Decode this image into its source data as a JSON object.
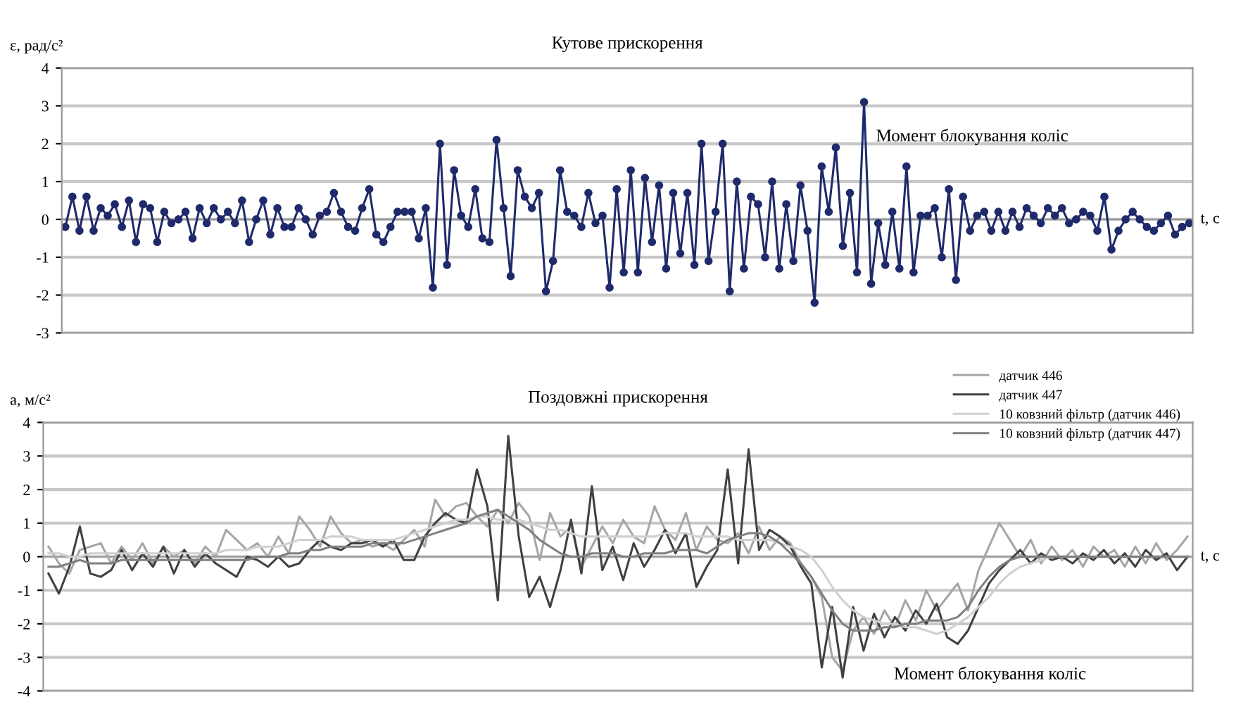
{
  "chart_data": [
    {
      "type": "line",
      "title": "Кутове прискорення",
      "ylabel": "ε, рад/с²",
      "xlabel": "t, с",
      "ylim": [
        -3,
        4
      ],
      "yticks": [
        -3,
        -2,
        -1,
        0,
        1,
        2,
        3,
        4
      ],
      "grid": "y",
      "marker": "circle",
      "legend": false,
      "categories": [
        null,
        null,
        null,
        null,
        null,
        null,
        null,
        null,
        null,
        null,
        null,
        null,
        null,
        null,
        null,
        null,
        null,
        null,
        null,
        null,
        null,
        null,
        null,
        null,
        null,
        null,
        null,
        null,
        null,
        null,
        null,
        null,
        null,
        null,
        null,
        null,
        null,
        null,
        null,
        null,
        null,
        null,
        null,
        null,
        null,
        null,
        null,
        null,
        null,
        null,
        null,
        null,
        null,
        null,
        null,
        null,
        null,
        null,
        null,
        null,
        null,
        null,
        null,
        null,
        null,
        null,
        null,
        null,
        null,
        null,
        null,
        null,
        null,
        null,
        null,
        null,
        null,
        null,
        null,
        null,
        null,
        null,
        null,
        null,
        null,
        null,
        null,
        null,
        null,
        null,
        null,
        null,
        null,
        null,
        null,
        null,
        null,
        null,
        null,
        null,
        null,
        null,
        null,
        null,
        null,
        null,
        null,
        null,
        null,
        null,
        null,
        null,
        null,
        null,
        null,
        null,
        null,
        null,
        null,
        null,
        null,
        null,
        null,
        null,
        null,
        null,
        null,
        null,
        null,
        null,
        null,
        null,
        null,
        null,
        null,
        null,
        null,
        null,
        null,
        null,
        null,
        null,
        null,
        null,
        null,
        null,
        null,
        null,
        null,
        null,
        null,
        null,
        null,
        null,
        null,
        null,
        null,
        null,
        null,
        null
      ],
      "series": [
        {
          "color": "#1f2a6b",
          "values": [
            -0.2,
            0.6,
            -0.3,
            0.6,
            -0.3,
            0.3,
            0.1,
            0.4,
            -0.2,
            0.5,
            -0.6,
            0.4,
            0.3,
            -0.6,
            0.2,
            -0.1,
            0,
            0.2,
            -0.5,
            0.3,
            -0.1,
            0.3,
            0,
            0.2,
            -0.1,
            0.5,
            -0.6,
            0,
            0.5,
            -0.4,
            0.3,
            -0.2,
            -0.2,
            0.3,
            0,
            -0.4,
            0.1,
            0.2,
            0.7,
            0.2,
            -0.2,
            -0.3,
            0.3,
            0.8,
            -0.4,
            -0.6,
            -0.2,
            0.2,
            0.2,
            0.2,
            -0.5,
            0.3,
            -1.8,
            2.0,
            -1.2,
            1.3,
            0.1,
            -0.2,
            0.8,
            -0.5,
            -0.6,
            2.1,
            0.3,
            -1.5,
            1.3,
            0.6,
            0.3,
            0.7,
            -1.9,
            -1.1,
            1.3,
            0.2,
            0.1,
            -0.2,
            0.7,
            -0.1,
            0.1,
            -1.8,
            0.8,
            -1.4,
            1.3,
            -1.4,
            1.1,
            -0.6,
            0.9,
            -1.3,
            0.7,
            -0.9,
            0.7,
            -1.2,
            2.0,
            -1.1,
            0.2,
            2.0,
            -1.9,
            1.0,
            -1.3,
            0.6,
            0.4,
            -1.0,
            1.0,
            -1.3,
            0.4,
            -1.1,
            0.9,
            -0.3,
            -2.2,
            1.4,
            0.2,
            1.9,
            -0.7,
            0.7,
            -1.4,
            3.1,
            -1.7,
            -0.1,
            -1.2,
            0.2,
            -1.3,
            1.4,
            -1.4,
            0.1,
            0.1,
            0.3,
            -1.0,
            0.8,
            -1.6,
            0.6,
            -0.3,
            0.1,
            0.2,
            -0.3,
            0.2,
            -0.3,
            0.2,
            -0.2,
            0.3,
            0.1,
            -0.1,
            0.3,
            0.1,
            0.3,
            -0.1,
            0,
            0.2,
            0.1,
            -0.3,
            0.6,
            -0.8,
            -0.3,
            0,
            0.2,
            0,
            -0.2,
            -0.3,
            -0.1,
            0.1,
            -0.4,
            -0.2,
            -0.1
          ]
        }
      ],
      "annotations": [
        "Момент блокування коліс"
      ]
    },
    {
      "type": "line",
      "title": "Поздовжні прискорення",
      "ylabel": "a, м/с²",
      "xlabel": "t, с",
      "ylim": [
        -4,
        4
      ],
      "yticks": [
        -4,
        -3,
        -2,
        -1,
        0,
        1,
        2,
        3,
        4
      ],
      "grid": "y",
      "legend": "top right",
      "categories": [
        null,
        null,
        null,
        null,
        null,
        null,
        null,
        null,
        null,
        null,
        null,
        null,
        null,
        null,
        null,
        null,
        null,
        null,
        null,
        null,
        null,
        null,
        null,
        null,
        null,
        null,
        null,
        null,
        null,
        null,
        null,
        null,
        null,
        null,
        null,
        null,
        null,
        null,
        null,
        null,
        null,
        null,
        null,
        null,
        null,
        null,
        null,
        null,
        null,
        null,
        null,
        null,
        null,
        null,
        null,
        null,
        null,
        null,
        null,
        null,
        null,
        null,
        null,
        null,
        null,
        null,
        null,
        null,
        null,
        null,
        null,
        null,
        null,
        null,
        null,
        null,
        null,
        null,
        null,
        null,
        null,
        null,
        null,
        null,
        null,
        null,
        null,
        null,
        null,
        null,
        null,
        null,
        null,
        null,
        null,
        null,
        null,
        null,
        null,
        null,
        null,
        null,
        null,
        null,
        null,
        null,
        null,
        null,
        null,
        null
      ],
      "series": [
        {
          "name": "датчик 446",
          "color": "#a6a6a6",
          "values": [
            0.3,
            -0.2,
            -0.5,
            0.2,
            0.3,
            0.4,
            -0.2,
            0.3,
            -0.1,
            0.4,
            -0.2,
            0.3,
            0.0,
            0.2,
            -0.2,
            0.3,
            0.0,
            0.8,
            0.5,
            0.2,
            0.4,
            0.0,
            0.6,
            0.1,
            1.2,
            0.8,
            0.3,
            1.2,
            0.7,
            0.4,
            0.5,
            0.3,
            0.4,
            0.2,
            0.5,
            0.8,
            0.3,
            1.7,
            1.2,
            1.5,
            1.6,
            1.2,
            0.9,
            1.4,
            1.0,
            1.6,
            1.2,
            -0.1,
            1.3,
            0.6,
            0.9,
            -0.3,
            0.3,
            0.9,
            0.4,
            1.1,
            0.6,
            0.4,
            1.5,
            0.8,
            0.5,
            1.3,
            0.2,
            0.9,
            0.5,
            0.4,
            0.7,
            0.1,
            0.9,
            0.2,
            0.6,
            0.4,
            -0.2,
            -0.6,
            -1.2,
            -3.0,
            -3.4,
            -2.2,
            -1.8,
            -2.3,
            -1.6,
            -2.1,
            -1.3,
            -1.9,
            -1.0,
            -1.6,
            -1.2,
            -0.8,
            -1.6,
            -0.4,
            0.3,
            1.0,
            0.5,
            0.0,
            0.5,
            -0.2,
            0.3,
            -0.1,
            0.2,
            -0.3,
            0.3,
            0.0,
            0.2,
            -0.3,
            0.3,
            -0.2,
            0.4,
            -0.1,
            0.2,
            0.6
          ]
        },
        {
          "name": "датчик 447",
          "color": "#404040",
          "values": [
            -0.5,
            -1.1,
            -0.3,
            0.9,
            -0.5,
            -0.6,
            -0.4,
            0.2,
            -0.4,
            0.1,
            -0.3,
            0.3,
            -0.5,
            0.2,
            -0.3,
            0.1,
            -0.2,
            -0.4,
            -0.6,
            0.0,
            -0.1,
            -0.3,
            0.0,
            -0.3,
            -0.2,
            0.2,
            0.5,
            0.3,
            0.2,
            0.4,
            0.4,
            0.5,
            0.3,
            0.5,
            -0.1,
            -0.1,
            0.6,
            1.0,
            1.3,
            1.1,
            1.0,
            2.6,
            1.5,
            -1.3,
            3.6,
            0.6,
            -1.2,
            -0.6,
            -1.5,
            -0.4,
            1.1,
            -0.5,
            2.1,
            -0.4,
            0.3,
            -0.7,
            0.4,
            -0.3,
            0.2,
            0.8,
            0.1,
            0.7,
            -0.9,
            -0.3,
            0.2,
            2.6,
            -0.2,
            3.2,
            0.2,
            0.8,
            0.6,
            0.3,
            -0.3,
            -0.8,
            -3.3,
            -1.5,
            -3.6,
            -1.5,
            -2.8,
            -1.7,
            -2.4,
            -1.8,
            -2.2,
            -1.6,
            -2.0,
            -1.4,
            -2.4,
            -2.6,
            -2.2,
            -1.5,
            -0.8,
            -0.4,
            -0.1,
            0.2,
            -0.2,
            0.1,
            -0.1,
            0.0,
            -0.2,
            0.1,
            -0.1,
            0.2,
            -0.2,
            0.1,
            -0.3,
            0.2,
            -0.1,
            0.1,
            -0.4,
            0.0
          ]
        },
        {
          "name": "10 ковзний фільтр (датчик 446)",
          "color": "#d0d0d0",
          "values": [
            0.1,
            0.1,
            0.0,
            0.0,
            0.1,
            0.1,
            0.1,
            0.1,
            0.1,
            0.1,
            0.1,
            0.1,
            0.1,
            0.1,
            0.1,
            0.1,
            0.1,
            0.2,
            0.2,
            0.2,
            0.3,
            0.3,
            0.3,
            0.4,
            0.5,
            0.5,
            0.5,
            0.6,
            0.6,
            0.6,
            0.5,
            0.5,
            0.5,
            0.5,
            0.6,
            0.7,
            0.8,
            0.9,
            1.0,
            1.1,
            1.1,
            1.2,
            1.2,
            1.1,
            1.1,
            1.1,
            1.0,
            0.9,
            0.8,
            0.8,
            0.7,
            0.6,
            0.6,
            0.6,
            0.6,
            0.6,
            0.6,
            0.6,
            0.6,
            0.7,
            0.7,
            0.7,
            0.6,
            0.6,
            0.6,
            0.6,
            0.5,
            0.5,
            0.5,
            0.5,
            0.4,
            0.3,
            0.2,
            0.0,
            -0.4,
            -0.9,
            -1.3,
            -1.6,
            -1.8,
            -1.9,
            -2.0,
            -2.0,
            -2.1,
            -2.1,
            -2.2,
            -2.3,
            -2.2,
            -2.0,
            -1.8,
            -1.5,
            -1.2,
            -0.8,
            -0.5,
            -0.3,
            -0.2,
            -0.1,
            0.0,
            0.0,
            0.0,
            0.0,
            0.0,
            0.0,
            0.0,
            0.0,
            0.0,
            0.0,
            0.0,
            0.0,
            0.0,
            0.0
          ]
        },
        {
          "name": "10 ковзний фільтр (датчик 447)",
          "color": "#808080",
          "values": [
            -0.3,
            -0.3,
            -0.2,
            -0.1,
            -0.2,
            -0.2,
            -0.2,
            -0.1,
            -0.1,
            -0.1,
            -0.1,
            -0.1,
            -0.1,
            -0.1,
            -0.1,
            -0.1,
            -0.1,
            -0.1,
            -0.1,
            -0.1,
            0.0,
            0.0,
            0.0,
            0.1,
            0.1,
            0.2,
            0.2,
            0.3,
            0.3,
            0.3,
            0.3,
            0.4,
            0.4,
            0.4,
            0.4,
            0.5,
            0.6,
            0.7,
            0.8,
            0.9,
            1.0,
            1.2,
            1.3,
            1.4,
            1.2,
            1.0,
            0.8,
            0.5,
            0.3,
            0.1,
            0.0,
            0.0,
            0.1,
            0.1,
            0.1,
            0.0,
            0.0,
            0.1,
            0.1,
            0.1,
            0.2,
            0.2,
            0.2,
            0.1,
            0.3,
            0.5,
            0.6,
            0.7,
            0.7,
            0.6,
            0.4,
            0.1,
            -0.2,
            -0.6,
            -1.1,
            -1.6,
            -2.0,
            -2.2,
            -2.2,
            -2.2,
            -2.1,
            -2.1,
            -2.0,
            -2.0,
            -1.9,
            -1.9,
            -1.9,
            -1.8,
            -1.5,
            -1.0,
            -0.6,
            -0.3,
            -0.1,
            0.0,
            0.0,
            0.0,
            0.0,
            0.0,
            0.0,
            0.0,
            0.0,
            0.0,
            0.0,
            0.0,
            0.0,
            0.0,
            0.0,
            0.0,
            0.0,
            0.0
          ]
        }
      ],
      "annotations": [
        "Момент блокування коліс"
      ]
    }
  ]
}
